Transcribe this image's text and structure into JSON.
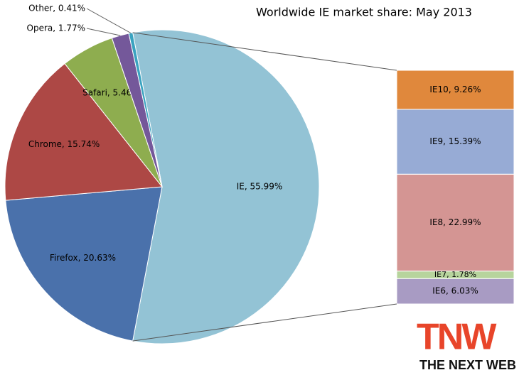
{
  "chart_data": [
    {
      "type": "pie",
      "title": "Worldwide IE market share: May 2013",
      "categories": [
        "IE",
        "Firefox",
        "Chrome",
        "Safari",
        "Opera",
        "Other"
      ],
      "values": [
        55.99,
        20.63,
        15.74,
        5.46,
        1.77,
        0.41
      ],
      "value_labels": [
        "IE, 55.99%",
        "Firefox, 20.63%",
        "Chrome, 15.74%",
        "Safari, 5.46%",
        "Opera, 1.77%",
        "Other, 0.41%"
      ],
      "colors": [
        "#93c3d5",
        "#4a71ab",
        "#ad4845",
        "#8ead4f",
        "#74589a",
        "#3aa3c0"
      ]
    },
    {
      "type": "bar",
      "stacked": true,
      "categories": [
        "IE6",
        "IE7",
        "IE8",
        "IE9",
        "IE10"
      ],
      "values": [
        6.03,
        1.78,
        22.99,
        15.39,
        9.26
      ],
      "value_labels": [
        "IE6, 6.03%",
        "IE7, 1.78%",
        "IE8, 22.99%",
        "IE9, 15.39%",
        "IE10, 9.26%"
      ],
      "colors": [
        "#a89bc3",
        "#b7d49d",
        "#d49593",
        "#97abd5",
        "#e0883c"
      ]
    }
  ],
  "logo": {
    "mark": "TNW",
    "text": "THE NEXT WEB"
  }
}
